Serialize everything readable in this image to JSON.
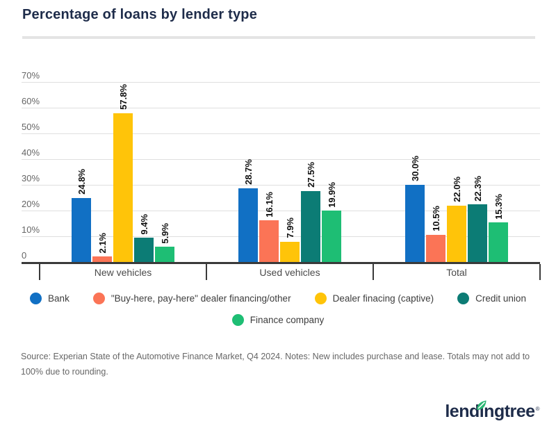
{
  "header": {
    "title": "Percentage of loans by lender type"
  },
  "chart_data": {
    "type": "bar",
    "title": "Percentage of loans by lender type",
    "categories": [
      "New vehicles",
      "Used vehicles",
      "Total"
    ],
    "series": [
      {
        "name": "Bank",
        "color": "#1170C4",
        "values": [
          24.8,
          28.7,
          30.0
        ],
        "labels": [
          "24.8%",
          "28.7%",
          "30.0%"
        ]
      },
      {
        "name": "\"Buy-here, pay-here\" dealer financing/other",
        "color": "#FB7456",
        "values": [
          2.1,
          16.1,
          10.5
        ],
        "labels": [
          "2.1%",
          "16.1%",
          "10.5%"
        ]
      },
      {
        "name": "Dealer finacing (captive)",
        "color": "#FFC409",
        "values": [
          57.8,
          7.9,
          22.0
        ],
        "labels": [
          "57.8%",
          "7.9%",
          "22.0%"
        ]
      },
      {
        "name": "Credit union",
        "color": "#0C7C75",
        "values": [
          9.4,
          27.5,
          22.3
        ],
        "labels": [
          "9.4%",
          "27.5%",
          "22.3%"
        ]
      },
      {
        "name": "Finance company",
        "color": "#1EBE74",
        "values": [
          5.9,
          19.9,
          15.3
        ],
        "labels": [
          "5.9%",
          "19.9%",
          "15.3%"
        ]
      }
    ],
    "y_axis": {
      "ticks": [
        "70%",
        "60%",
        "50%",
        "40%",
        "30%",
        "20%",
        "10%",
        "0"
      ],
      "min": 0,
      "max": 70
    },
    "grid": true,
    "legend_position": "bottom",
    "legend_wrap_after": 4
  },
  "footer": {
    "source": "Source: Experian State of the Automotive Finance Market, Q4 2024. Notes: New includes purchase and lease. Totals may not add to 100% due to rounding.",
    "logo": {
      "text": "lendingtree",
      "mark": "®"
    }
  }
}
